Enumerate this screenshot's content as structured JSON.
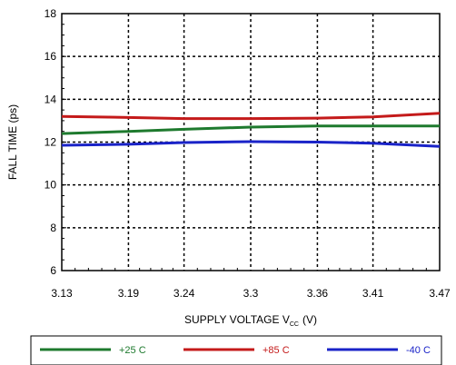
{
  "chart_data": {
    "type": "line",
    "xlabel": {
      "main": "SUPPLY VOLTAGE V",
      "sub": "CC",
      "unit": "(V)"
    },
    "ylabel": "FALL TIME (ps)",
    "x": [
      3.13,
      3.19,
      3.24,
      3.3,
      3.36,
      3.41,
      3.47
    ],
    "x_tick_labels": [
      "3.13",
      "3.19",
      "3.24",
      "3.3",
      "3.36",
      "3.41",
      "3.47"
    ],
    "xlim": [
      3.13,
      3.47
    ],
    "ylim": [
      6,
      18
    ],
    "y_ticks": [
      6,
      8,
      10,
      12,
      14,
      16,
      18
    ],
    "y_tick_labels": [
      "6",
      "8",
      "10",
      "12",
      "14",
      "16",
      "18"
    ],
    "grid": true,
    "legend_position": "bottom",
    "series": [
      {
        "name": "+25 C",
        "color": "#1e7a2e",
        "values": [
          12.4,
          12.5,
          12.6,
          12.7,
          12.75,
          12.75,
          12.75
        ]
      },
      {
        "name": "+85 C",
        "color": "#c41a1a",
        "values": [
          13.2,
          13.15,
          13.1,
          13.1,
          13.12,
          13.18,
          13.35
        ]
      },
      {
        "name": "-40 C",
        "color": "#1a23c8",
        "values": [
          11.85,
          11.9,
          11.98,
          12.02,
          12.0,
          11.95,
          11.8
        ]
      }
    ]
  }
}
